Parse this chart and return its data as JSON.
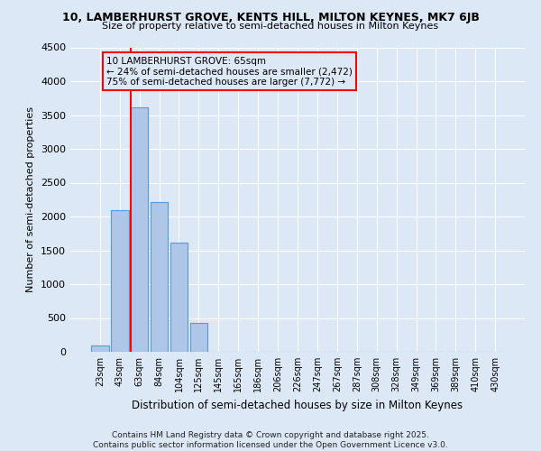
{
  "title": "10, LAMBERHURST GROVE, KENTS HILL, MILTON KEYNES, MK7 6JB",
  "subtitle": "Size of property relative to semi-detached houses in Milton Keynes",
  "xlabel": "Distribution of semi-detached houses by size in Milton Keynes",
  "ylabel": "Number of semi-detached properties",
  "bar_labels": [
    "23sqm",
    "43sqm",
    "63sqm",
    "84sqm",
    "104sqm",
    "125sqm",
    "145sqm",
    "165sqm",
    "186sqm",
    "206sqm",
    "226sqm",
    "247sqm",
    "267sqm",
    "287sqm",
    "308sqm",
    "328sqm",
    "349sqm",
    "369sqm",
    "389sqm",
    "410sqm",
    "430sqm"
  ],
  "bar_values": [
    100,
    2100,
    3620,
    2220,
    1620,
    430,
    0,
    0,
    0,
    0,
    0,
    0,
    0,
    0,
    0,
    0,
    0,
    0,
    0,
    0,
    0
  ],
  "bar_color": "#aec6e8",
  "bar_edge_color": "#5b9bd5",
  "highlight_bin_index": 2,
  "highlight_line_color": "red",
  "annotation_text": "10 LAMBERHURST GROVE: 65sqm\n← 24% of semi-detached houses are smaller (2,472)\n75% of semi-detached houses are larger (7,772) →",
  "annotation_box_color": "red",
  "ylim": [
    0,
    4500
  ],
  "yticks": [
    0,
    500,
    1000,
    1500,
    2000,
    2500,
    3000,
    3500,
    4000,
    4500
  ],
  "background_color": "#dce8f5",
  "grid_color": "white",
  "footer": "Contains HM Land Registry data © Crown copyright and database right 2025.\nContains public sector information licensed under the Open Government Licence v3.0."
}
